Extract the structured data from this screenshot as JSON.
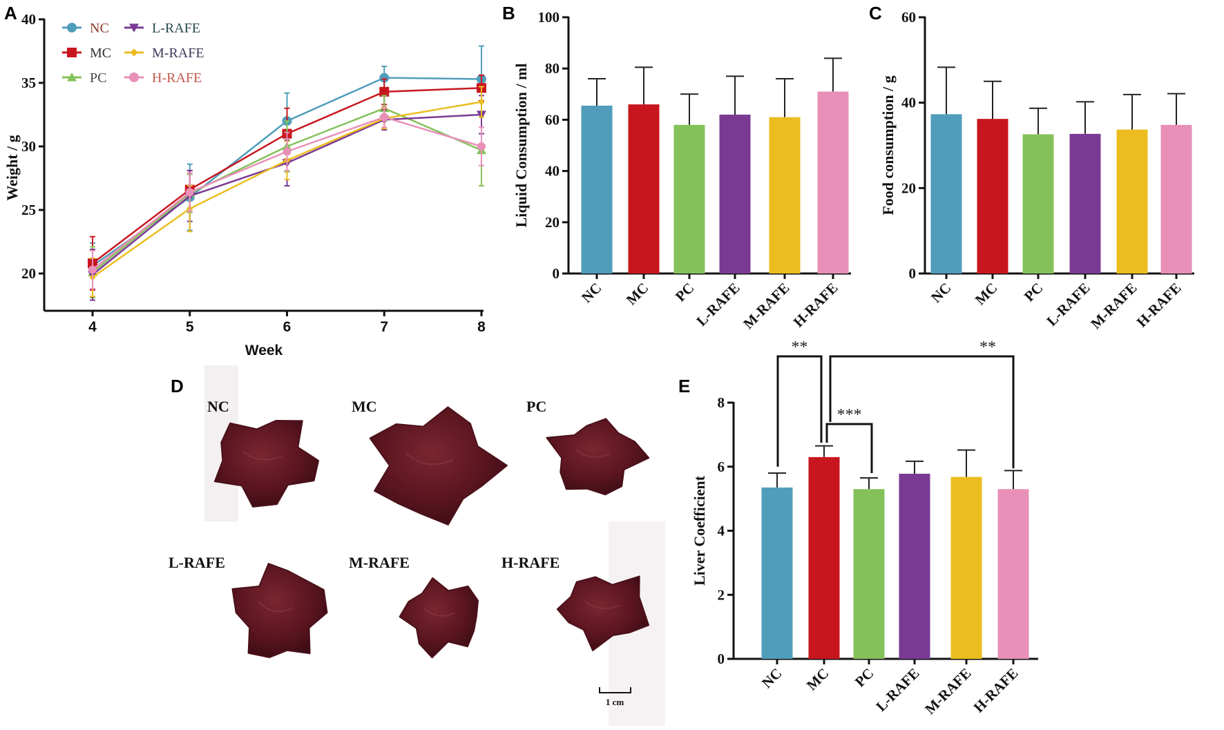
{
  "colors": {
    "NC": "#4f9dbb",
    "MC": "#c8161e",
    "PC": "#85c15a",
    "L-RAFE": "#7a3a93",
    "M-RAFE": "#ebbd1e",
    "H-RAFE": "#e890b8"
  },
  "chart_data": [
    {
      "panel": "A",
      "type": "line",
      "title": "",
      "xlabel": "Week",
      "ylabel": "Weight / g",
      "x": [
        4,
        5,
        6,
        7,
        8
      ],
      "xticks": [
        "4",
        "5",
        "6",
        "7",
        "8"
      ],
      "yticks": [
        "20",
        "25",
        "30",
        "35",
        "40"
      ],
      "ylim": [
        17.4,
        40
      ],
      "legend_placement": "top-left",
      "series": [
        {
          "name": "NC",
          "marker": "circle",
          "values": [
            20.6,
            26.0,
            32.0,
            35.4,
            35.3
          ],
          "error": [
            1.8,
            2.6,
            2.2,
            0.9,
            2.6
          ]
        },
        {
          "name": "MC",
          "marker": "square",
          "values": [
            20.8,
            26.6,
            31.0,
            34.3,
            34.6
          ],
          "error": [
            2.1,
            1.5,
            2.0,
            1.0,
            1.0
          ]
        },
        {
          "name": "PC",
          "marker": "triangle-up",
          "values": [
            20.1,
            26.3,
            30.0,
            33.0,
            29.7
          ],
          "error": [
            2.0,
            1.5,
            2.0,
            1.0,
            2.8
          ]
        },
        {
          "name": "L-RAFE",
          "marker": "triangle-down",
          "values": [
            19.9,
            26.1,
            28.7,
            32.1,
            32.5
          ],
          "error": [
            2.0,
            2.0,
            1.8,
            0.8,
            1.5
          ]
        },
        {
          "name": "M-RAFE",
          "marker": "diamond",
          "values": [
            19.7,
            25.1,
            28.9,
            32.2,
            33.5
          ],
          "error": [
            1.5,
            1.8,
            1.5,
            0.8,
            1.2
          ]
        },
        {
          "name": "H-RAFE",
          "marker": "circle",
          "values": [
            20.3,
            26.4,
            29.6,
            32.3,
            30.0
          ],
          "error": [
            1.5,
            1.5,
            1.5,
            0.8,
            1.5
          ]
        }
      ]
    },
    {
      "panel": "B",
      "type": "bar",
      "ylabel": "Liquid Consumption / ml",
      "xlabel": "",
      "categories": [
        "NC",
        "MC",
        "PC",
        "L-RAFE",
        "M-RAFE",
        "H-RAFE"
      ],
      "values": [
        65.5,
        66,
        58,
        62,
        61,
        71
      ],
      "error": [
        10.5,
        14.5,
        12,
        15,
        15,
        13
      ],
      "yticks": [
        "0",
        "20",
        "40",
        "60",
        "80",
        "100"
      ],
      "ylim": [
        0,
        100
      ]
    },
    {
      "panel": "C",
      "type": "bar",
      "ylabel": "Food consumption / g",
      "xlabel": "",
      "categories": [
        "NC",
        "MC",
        "PC",
        "L-RAFE",
        "M-RAFE",
        "H-RAFE"
      ],
      "values": [
        37.3,
        36.2,
        32.6,
        32.7,
        33.7,
        34.8
      ],
      "error": [
        11.0,
        8.8,
        6.1,
        7.5,
        8.2,
        7.3
      ],
      "yticks": [
        "0",
        "20",
        "40",
        "60"
      ],
      "ylim": [
        0,
        60
      ]
    },
    {
      "panel": "E",
      "type": "bar",
      "ylabel": "Liver Coefficient",
      "xlabel": "",
      "categories": [
        "NC",
        "MC",
        "PC",
        "L-RAFE",
        "M-RAFE",
        "H-RAFE"
      ],
      "values": [
        5.35,
        6.3,
        5.3,
        5.78,
        5.68,
        5.3
      ],
      "error": [
        0.45,
        0.35,
        0.35,
        0.39,
        0.84,
        0.58
      ],
      "yticks": [
        "0",
        "2",
        "4",
        "6",
        "8"
      ],
      "ylim": [
        0,
        8
      ],
      "significance": [
        {
          "from": "NC",
          "to": "MC",
          "label": "**"
        },
        {
          "from": "MC",
          "to": "PC",
          "label": "***"
        },
        {
          "from": "MC",
          "to": "H-RAFE",
          "label": "**"
        }
      ]
    }
  ],
  "photos": {
    "panel": "D",
    "labels": [
      "NC",
      "MC",
      "PC",
      "L-RAFE",
      "M-RAFE",
      "H-RAFE"
    ],
    "scale_bar": "1 cm"
  }
}
